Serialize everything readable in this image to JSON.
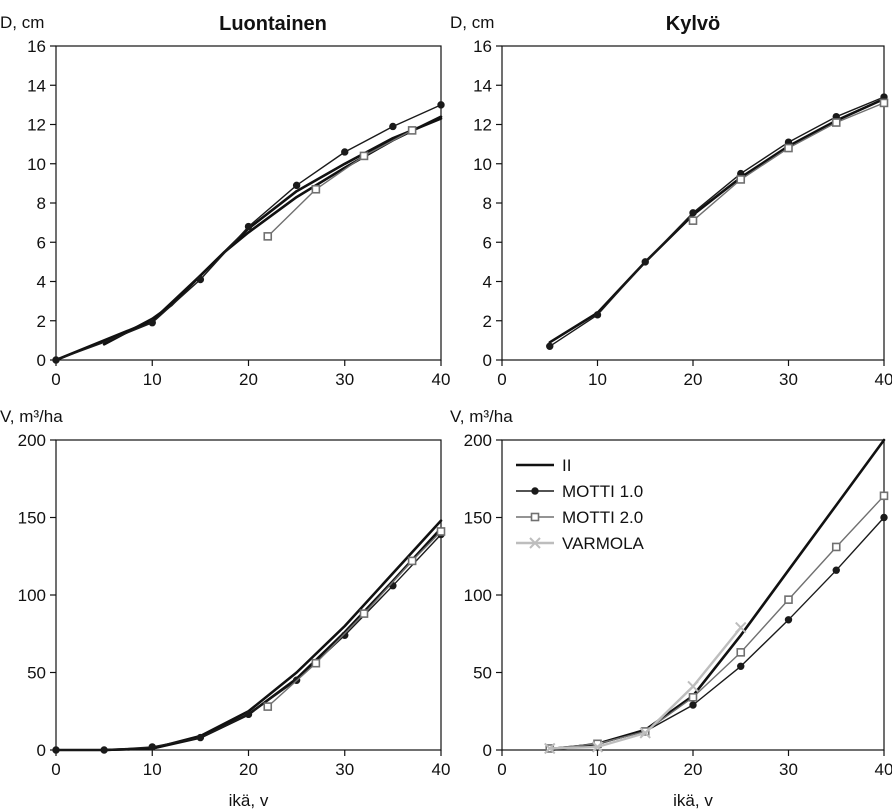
{
  "chart_data": [
    {
      "type": "line",
      "title": "Luontainen",
      "ylabel": "D, cm",
      "xlabel": "",
      "xlim": [
        0,
        40
      ],
      "ylim": [
        0,
        16
      ],
      "xticks": [
        "0",
        "10",
        "20",
        "30",
        "40"
      ],
      "yticks": [
        "0",
        "2",
        "4",
        "6",
        "8",
        "10",
        "12",
        "14",
        "16"
      ],
      "grid": false,
      "series": [
        {
          "name": "II",
          "x": [
            0,
            10,
            15,
            20,
            25,
            30,
            35,
            40
          ],
          "y": [
            0,
            2.0,
            4.3,
            6.7,
            8.6,
            10.0,
            11.3,
            12.3
          ]
        },
        {
          "name": "II",
          "x": [
            5,
            10,
            12,
            15,
            17.5,
            20,
            25,
            30,
            35,
            40
          ],
          "y": [
            0.8,
            2.1,
            2.8,
            4.3,
            5.5,
            6.5,
            8.3,
            9.8,
            11.2,
            12.4
          ]
        },
        {
          "name": "MOTTI 1.0",
          "x": [
            0,
            5,
            10,
            15,
            20,
            25,
            30,
            35,
            40
          ],
          "y": [
            0,
            0.9,
            1.9,
            4.1,
            6.8,
            8.9,
            10.6,
            11.9,
            13.0
          ]
        },
        {
          "name": "MOTTI 2.0",
          "x": [
            22,
            27,
            32,
            37
          ],
          "y": [
            6.3,
            8.7,
            10.4,
            11.7
          ]
        }
      ]
    },
    {
      "type": "line",
      "title": "Kylvö",
      "ylabel": "D, cm",
      "xlabel": "",
      "xlim": [
        0,
        40
      ],
      "ylim": [
        0,
        16
      ],
      "xticks": [
        "0",
        "10",
        "20",
        "30",
        "40"
      ],
      "yticks": [
        "0",
        "2",
        "4",
        "6",
        "8",
        "10",
        "12",
        "14",
        "16"
      ],
      "grid": false,
      "series": [
        {
          "name": "II",
          "x": [
            5,
            10,
            15,
            20,
            25,
            30,
            35,
            40
          ],
          "y": [
            0.9,
            2.4,
            5.0,
            7.4,
            9.3,
            10.9,
            12.2,
            13.3
          ]
        },
        {
          "name": "MOTTI 1.0",
          "x": [
            5,
            10,
            15,
            20,
            25,
            30,
            35,
            40
          ],
          "y": [
            0.7,
            2.3,
            5.0,
            7.5,
            9.5,
            11.1,
            12.4,
            13.4
          ]
        },
        {
          "name": "MOTTI 2.0",
          "x": [
            20,
            25,
            30,
            35,
            40
          ],
          "y": [
            7.1,
            9.2,
            10.8,
            12.1,
            13.1
          ]
        }
      ]
    },
    {
      "type": "line",
      "title": "",
      "ylabel": "V, m³/ha",
      "xlabel": "ikä, v",
      "xlim": [
        0,
        40
      ],
      "ylim": [
        0,
        200
      ],
      "xticks": [
        "0",
        "10",
        "20",
        "30",
        "40"
      ],
      "yticks": [
        "0",
        "50",
        "100",
        "150",
        "200"
      ],
      "grid": false,
      "series": [
        {
          "name": "II",
          "x": [
            0,
            5,
            10,
            15,
            20,
            25,
            30,
            35,
            40
          ],
          "y": [
            0,
            0,
            1,
            9,
            25,
            50,
            80,
            114,
            148
          ]
        },
        {
          "name": "II",
          "x": [
            5,
            10,
            15,
            20,
            25,
            30,
            35,
            40
          ],
          "y": [
            0,
            1,
            8,
            23,
            46,
            76,
            109,
            143
          ]
        },
        {
          "name": "MOTTI 1.0",
          "x": [
            0,
            5,
            10,
            15,
            20,
            25,
            30,
            35,
            40
          ],
          "y": [
            0,
            0,
            2,
            8,
            23,
            45,
            74,
            106,
            139
          ]
        },
        {
          "name": "MOTTI 2.0",
          "x": [
            22,
            27,
            32,
            37,
            40
          ],
          "y": [
            28,
            56,
            88,
            122,
            141
          ]
        }
      ]
    },
    {
      "type": "line",
      "title": "",
      "ylabel": "V, m³/ha",
      "xlabel": "ikä, v",
      "xlim": [
        0,
        40
      ],
      "ylim": [
        0,
        200
      ],
      "xticks": [
        "0",
        "10",
        "20",
        "30",
        "40"
      ],
      "yticks": [
        "0",
        "50",
        "100",
        "150",
        "200"
      ],
      "grid": false,
      "legend": "top-left",
      "legend_entries": [
        "II",
        "MOTTI 1.0",
        "MOTTI 2.0",
        "VARMOLA"
      ],
      "series": [
        {
          "name": "II",
          "x": [
            5,
            10,
            15,
            20,
            25,
            30,
            35,
            40
          ],
          "y": [
            0,
            4,
            13,
            35,
            74,
            116,
            158,
            200
          ]
        },
        {
          "name": "MOTTI 1.0",
          "x": [
            5,
            10,
            15,
            20,
            25,
            30,
            35,
            40
          ],
          "y": [
            1,
            4,
            12,
            29,
            54,
            84,
            116,
            150
          ]
        },
        {
          "name": "MOTTI 2.0",
          "x": [
            5,
            10,
            15,
            20,
            25,
            30,
            35,
            40
          ],
          "y": [
            1,
            4,
            12,
            34,
            63,
            97,
            131,
            164
          ]
        },
        {
          "name": "VARMOLA",
          "x": [
            5,
            10,
            15,
            20,
            25
          ],
          "y": [
            1,
            2,
            11,
            41,
            79
          ]
        }
      ]
    }
  ],
  "colors": {
    "II": "#111111",
    "MOTTI 1.0": "#1a1a1a",
    "MOTTI 2.0": "#707070",
    "VARMOLA": "#bdbdbd"
  }
}
